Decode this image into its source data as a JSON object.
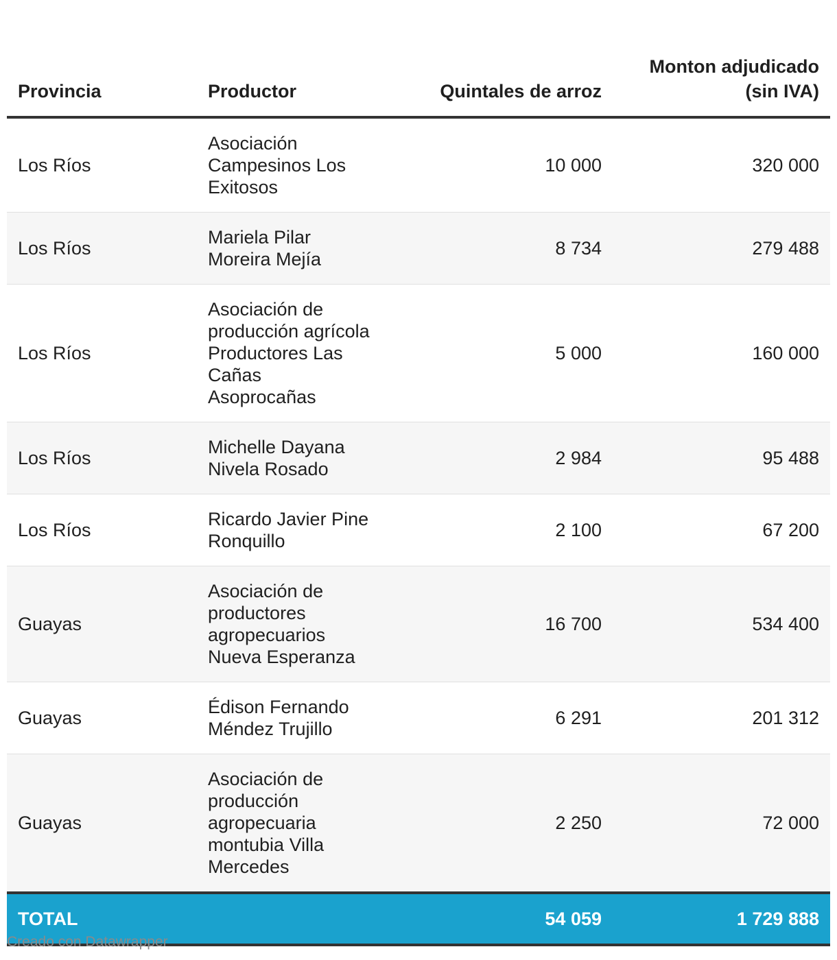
{
  "table": {
    "headers": {
      "provincia": "Provincia",
      "productor": "Productor",
      "quintales": "Quintales de arroz",
      "monto": "Monton adjudicado (sin IVA)"
    },
    "rows": [
      {
        "provincia": "Los Ríos",
        "productor": "Asociación Campesinos Los Exitosos",
        "quintales": "10 000",
        "monto": "320 000"
      },
      {
        "provincia": "Los Ríos",
        "productor": "Mariela Pilar Moreira Mejía",
        "quintales": "8 734",
        "monto": "279 488"
      },
      {
        "provincia": "Los Ríos",
        "productor": "Asociación de producción agrícola Productores Las Cañas Asoprocañas",
        "quintales": "5 000",
        "monto": "160 000"
      },
      {
        "provincia": "Los Ríos",
        "productor": "Michelle Dayana Nivela Rosado",
        "quintales": "2 984",
        "monto": "95 488"
      },
      {
        "provincia": "Los Ríos",
        "productor": "Ricardo Javier Pine Ronquillo",
        "quintales": "2 100",
        "monto": "67 200"
      },
      {
        "provincia": "Guayas",
        "productor": "Asociación de productores agropecuarios Nueva Esperanza",
        "quintales": "16 700",
        "monto": "534 400"
      },
      {
        "provincia": "Guayas",
        "productor": "Édison Fernando Méndez Trujillo",
        "quintales": "6 291",
        "monto": "201 312"
      },
      {
        "provincia": "Guayas",
        "productor": "Asociación de producción agropecuaria montubia Villa Mercedes",
        "quintales": "2 250",
        "monto": "72 000"
      }
    ],
    "total": {
      "label": "TOTAL",
      "quintales": "54 059",
      "monto": "1 729 888"
    }
  },
  "footer": {
    "credit": "Creado con Datawrapper"
  },
  "colors": {
    "total_background": "#1aa2ce",
    "total_text": "#ffffff",
    "rule": "#333333",
    "stripe": "#f6f6f6"
  }
}
